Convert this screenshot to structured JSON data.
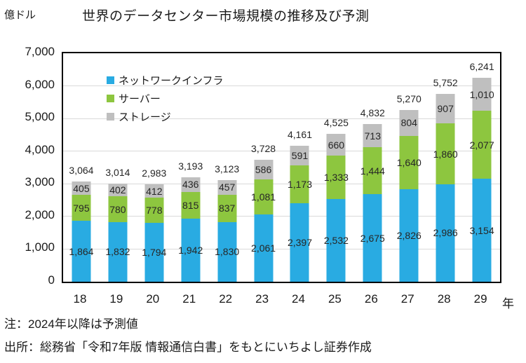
{
  "unit_label": "億ドル",
  "title": "世界のデータセンター市場規模の推移及び予測",
  "x_axis_unit": "年",
  "notes": {
    "note": "注：2024年以降は予測値",
    "source": "出所：総務省「令和7年版 情報通信白書」をもとにいちよし証券作成"
  },
  "colors": {
    "network": "#29ABE2",
    "server": "#8DC63F",
    "storage": "#BFBFBF",
    "grid": "#D9D9D9",
    "border": "#000000",
    "background": "#FFFFFF"
  },
  "chart_data": {
    "type": "bar",
    "stacked": true,
    "title": "世界のデータセンター市場規模の推移及び予測",
    "ylabel": "億ドル",
    "xlabel": "年",
    "ylim": [
      0,
      7000
    ],
    "ytick_interval": 1000,
    "grid": true,
    "legend_position": "top-left-inside",
    "categories": [
      "18",
      "19",
      "20",
      "21",
      "22",
      "23",
      "24",
      "25",
      "26",
      "27",
      "28",
      "29"
    ],
    "series": [
      {
        "key": "network",
        "name": "ネットワークインフラ",
        "color": "#29ABE2",
        "values": [
          1864,
          1832,
          1794,
          1942,
          1830,
          2061,
          2397,
          2532,
          2675,
          2826,
          2986,
          3154
        ]
      },
      {
        "key": "server",
        "name": "サーバー",
        "color": "#8DC63F",
        "values": [
          795,
          780,
          778,
          815,
          837,
          1081,
          1173,
          1333,
          1444,
          1640,
          1860,
          2077
        ]
      },
      {
        "key": "storage",
        "name": "ストレージ",
        "color": "#BFBFBF",
        "values": [
          405,
          402,
          412,
          436,
          457,
          586,
          591,
          660,
          713,
          804,
          907,
          1010
        ]
      }
    ],
    "totals": [
      3064,
      3014,
      2983,
      3193,
      3123,
      3728,
      4161,
      4525,
      4832,
      5270,
      5752,
      6241
    ]
  }
}
